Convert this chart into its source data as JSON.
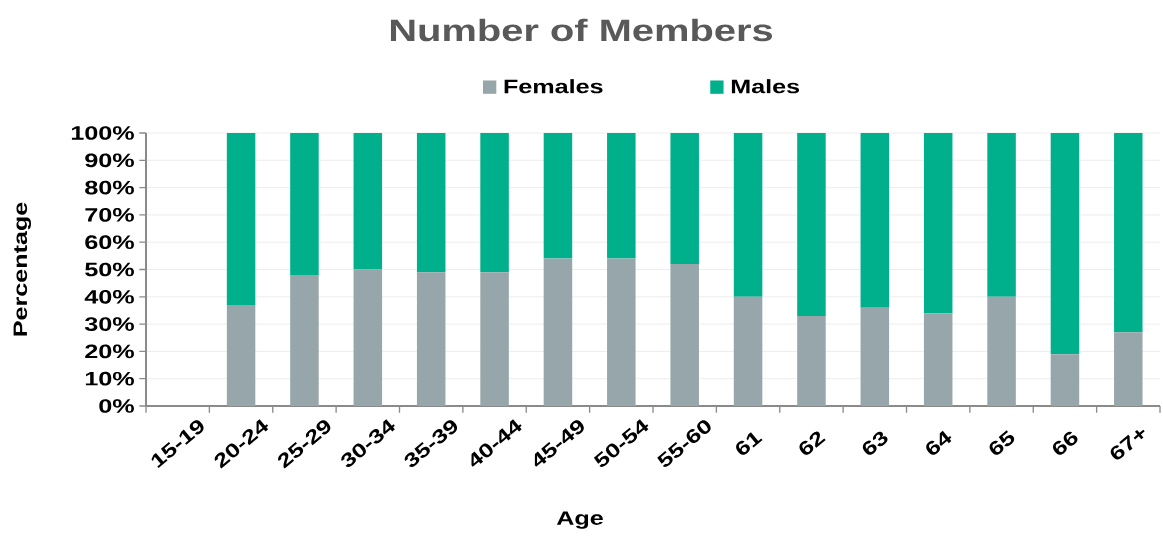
{
  "chart_data": {
    "type": "bar",
    "stacked": true,
    "title": "Number of Members",
    "xlabel": "Age",
    "ylabel": "Percentage",
    "categories": [
      "15-19",
      "20-24",
      "25-29",
      "30-34",
      "35-39",
      "40-44",
      "45-49",
      "50-54",
      "55-60",
      "61",
      "62",
      "63",
      "64",
      "65",
      "66",
      "67+"
    ],
    "series": [
      {
        "name": "Females",
        "color": "#96a6aa",
        "values": [
          null,
          37,
          48,
          50,
          49,
          49,
          54,
          54,
          52,
          40,
          33,
          36,
          34,
          40,
          19,
          27
        ]
      },
      {
        "name": "Males",
        "color": "#00b08c",
        "values": [
          null,
          63,
          52,
          50,
          51,
          51,
          46,
          46,
          48,
          60,
          67,
          64,
          66,
          60,
          81,
          73
        ]
      }
    ],
    "ylim": [
      0,
      100
    ],
    "yticks": [
      {
        "value": 0,
        "label": "0%"
      },
      {
        "value": 10,
        "label": "10%"
      },
      {
        "value": 20,
        "label": "20%"
      },
      {
        "value": 30,
        "label": "30%"
      },
      {
        "value": 40,
        "label": "40%"
      },
      {
        "value": 50,
        "label": "50%"
      },
      {
        "value": 60,
        "label": "60%"
      },
      {
        "value": 70,
        "label": "70%"
      },
      {
        "value": 80,
        "label": "80%"
      },
      {
        "value": 90,
        "label": "90%"
      },
      {
        "value": 100,
        "label": "100%"
      }
    ],
    "grid": "y",
    "legend": "top"
  }
}
